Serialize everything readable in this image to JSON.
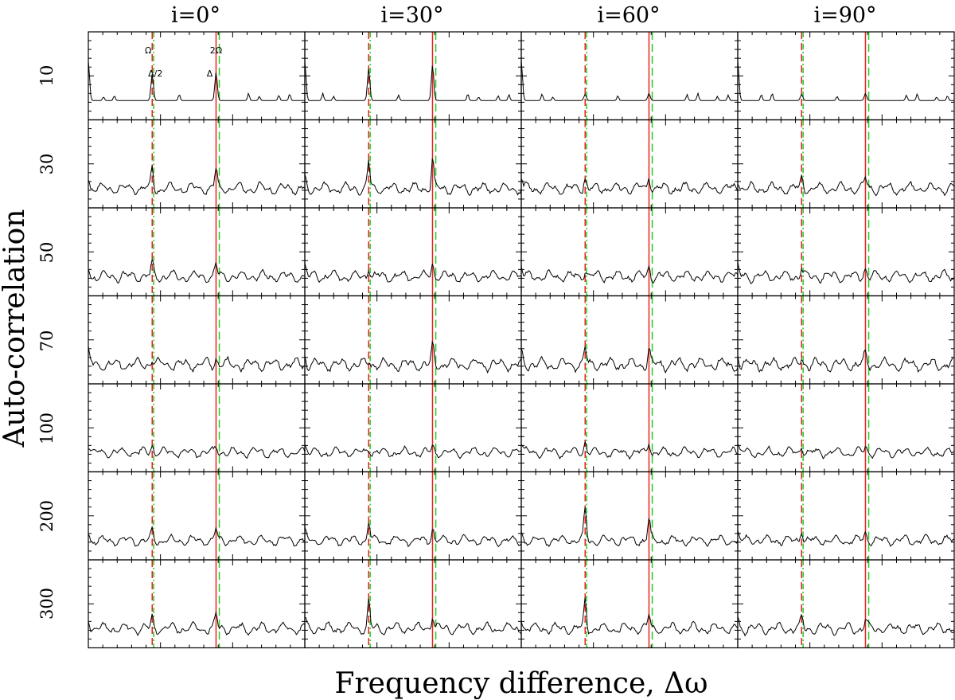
{
  "chart_data": {
    "type": "line",
    "xlabel": "Frequency difference, Δω",
    "ylabel": "Auto-correlation",
    "column_labels": [
      "i=0°",
      "i=30°",
      "i=60°",
      "i=90°"
    ],
    "row_labels": [
      "10",
      "30",
      "50",
      "70",
      "100",
      "200",
      "300"
    ],
    "annotations": {
      "omega": "Ω",
      "two_omega": "2Ω",
      "half_delta": "Δ/2",
      "delta": "Δ"
    },
    "ref_lines": {
      "omega": 0.295,
      "two_omega": 0.59,
      "half_delta": 0.302,
      "delta": 0.605
    },
    "colors": {
      "trace": "#000000",
      "solid_red": "#e8201e",
      "dashed_red": "#e8201e",
      "dashed_green": "#22cc22"
    },
    "peak_heights": [
      [
        [
          0.3,
          0.32
        ],
        [
          0.22,
          0.22
        ],
        [
          0.14,
          0.13
        ],
        [
          0.08,
          0.09
        ],
        [
          0.08,
          0.07
        ],
        [
          0.11,
          0.12
        ],
        [
          0.12,
          0.14
        ]
      ],
      [
        [
          0.36,
          0.4
        ],
        [
          0.3,
          0.33
        ],
        [
          0.12,
          0.15
        ],
        [
          0.06,
          0.2
        ],
        [
          0.06,
          0.08
        ],
        [
          0.23,
          0.16
        ],
        [
          0.3,
          0.18
        ]
      ],
      [
        [
          0.07,
          0.08
        ],
        [
          0.13,
          0.16
        ],
        [
          0.08,
          0.13
        ],
        [
          0.18,
          0.18
        ],
        [
          0.14,
          0.14
        ],
        [
          0.35,
          0.25
        ],
        [
          0.32,
          0.15
        ]
      ],
      [
        [
          0.07,
          0.08
        ],
        [
          0.12,
          0.12
        ],
        [
          0.1,
          0.11
        ],
        [
          0.09,
          0.12
        ],
        [
          0.08,
          0.08
        ],
        [
          0.14,
          0.11
        ],
        [
          0.12,
          0.1
        ]
      ]
    ],
    "noise_level": [
      0.03,
      0.08,
      0.08,
      0.09,
      0.07,
      0.07,
      0.08
    ],
    "grid": false
  }
}
